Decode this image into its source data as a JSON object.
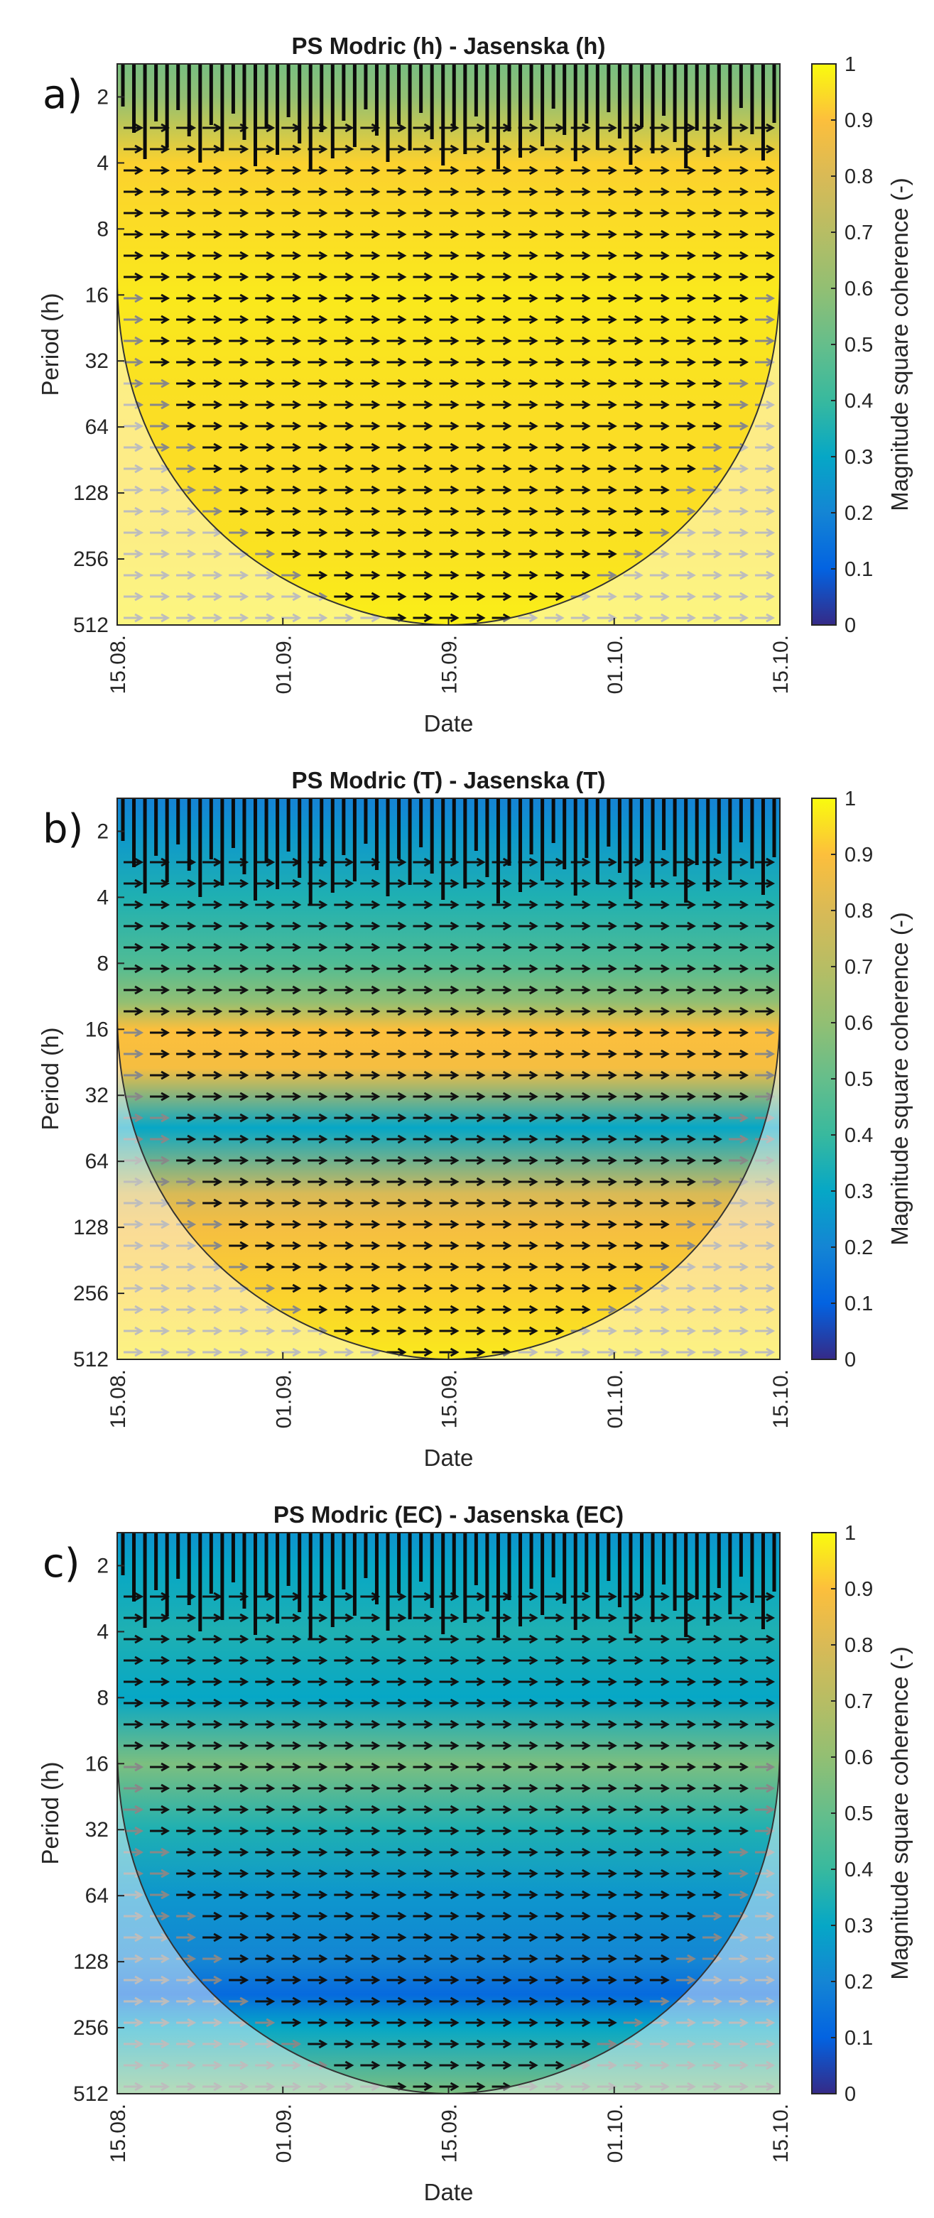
{
  "chart_data": [
    {
      "type": "heatmap",
      "panel_label": "a)",
      "title": "PS Modric (h) - Jasenska (h)",
      "xlabel": "Date",
      "ylabel": "Period (h)",
      "x_ticks": [
        "15.08.",
        "01.09.",
        "15.09.",
        "01.10.",
        "15.10."
      ],
      "y_ticks": [
        "2",
        "4",
        "8",
        "16",
        "32",
        "64",
        "128",
        "256",
        "512"
      ],
      "ylim_log2": [
        0.5,
        9
      ],
      "colorbar": {
        "label": "Magnitude square coherence (-)",
        "ticks": [
          "0",
          "0.1",
          "0.2",
          "0.3",
          "0.4",
          "0.5",
          "0.6",
          "0.7",
          "0.8",
          "0.9",
          "1"
        ],
        "range": [
          0,
          1
        ]
      },
      "coherence_profile": [
        {
          "period_h": 1.5,
          "coherence": 0.55
        },
        {
          "period_h": 2,
          "coherence": 0.6
        },
        {
          "period_h": 4,
          "coherence": 0.93
        },
        {
          "period_h": 8,
          "coherence": 0.95
        },
        {
          "period_h": 16,
          "coherence": 0.97
        },
        {
          "period_h": 32,
          "coherence": 0.96
        },
        {
          "period_h": 64,
          "coherence": 0.95
        },
        {
          "period_h": 128,
          "coherence": 0.95
        },
        {
          "period_h": 256,
          "coherence": 0.96
        },
        {
          "period_h": 512,
          "coherence": 0.98
        }
      ],
      "arrow_direction_deg": 0
    },
    {
      "type": "heatmap",
      "panel_label": "b)",
      "title": "PS Modric (T) - Jasenska (T)",
      "xlabel": "Date",
      "ylabel": "Period (h)",
      "x_ticks": [
        "15.08.",
        "01.09.",
        "15.09.",
        "01.10.",
        "15.10."
      ],
      "y_ticks": [
        "2",
        "4",
        "8",
        "16",
        "32",
        "64",
        "128",
        "256",
        "512"
      ],
      "ylim_log2": [
        0.5,
        9
      ],
      "colorbar": {
        "label": "Magnitude square coherence (-)",
        "ticks": [
          "0",
          "0.1",
          "0.2",
          "0.3",
          "0.4",
          "0.5",
          "0.6",
          "0.7",
          "0.8",
          "0.9",
          "1"
        ],
        "range": [
          0,
          1
        ]
      },
      "coherence_profile": [
        {
          "period_h": 1.5,
          "coherence": 0.2
        },
        {
          "period_h": 2,
          "coherence": 0.25
        },
        {
          "period_h": 4,
          "coherence": 0.35
        },
        {
          "period_h": 8,
          "coherence": 0.45
        },
        {
          "period_h": 12,
          "coherence": 0.6
        },
        {
          "period_h": 16,
          "coherence": 0.9
        },
        {
          "period_h": 24,
          "coherence": 0.88
        },
        {
          "period_h": 45,
          "coherence": 0.3
        },
        {
          "period_h": 90,
          "coherence": 0.8
        },
        {
          "period_h": 128,
          "coherence": 0.88
        },
        {
          "period_h": 256,
          "coherence": 0.93
        },
        {
          "period_h": 512,
          "coherence": 0.97
        }
      ],
      "arrow_direction_deg": 0
    },
    {
      "type": "heatmap",
      "panel_label": "c)",
      "title": "PS Modric (EC) - Jasenska (EC)",
      "xlabel": "Date",
      "ylabel": "Period (h)",
      "x_ticks": [
        "15.08.",
        "01.09.",
        "15.09.",
        "01.10.",
        "15.10."
      ],
      "y_ticks": [
        "2",
        "4",
        "8",
        "16",
        "32",
        "64",
        "128",
        "256",
        "512"
      ],
      "ylim_log2": [
        0.5,
        9
      ],
      "colorbar": {
        "label": "Magnitude square coherence (-)",
        "ticks": [
          "0",
          "0.1",
          "0.2",
          "0.3",
          "0.4",
          "0.5",
          "0.6",
          "0.7",
          "0.8",
          "0.9",
          "1"
        ],
        "range": [
          0,
          1
        ]
      },
      "coherence_profile": [
        {
          "period_h": 1.5,
          "coherence": 0.25
        },
        {
          "period_h": 2,
          "coherence": 0.3
        },
        {
          "period_h": 4,
          "coherence": 0.35
        },
        {
          "period_h": 8,
          "coherence": 0.3
        },
        {
          "period_h": 16,
          "coherence": 0.55
        },
        {
          "period_h": 32,
          "coherence": 0.35
        },
        {
          "period_h": 64,
          "coherence": 0.25
        },
        {
          "period_h": 128,
          "coherence": 0.2
        },
        {
          "period_h": 180,
          "coherence": 0.12
        },
        {
          "period_h": 256,
          "coherence": 0.3
        },
        {
          "period_h": 512,
          "coherence": 0.55
        }
      ],
      "arrow_direction_deg": 0
    }
  ]
}
